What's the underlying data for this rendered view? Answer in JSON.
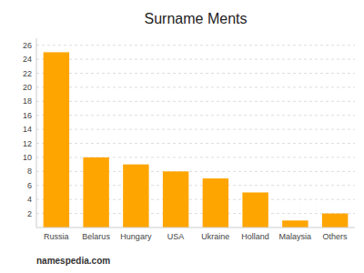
{
  "chart_data": {
    "type": "bar",
    "title": "Surname Ments",
    "categories": [
      "Russia",
      "Belarus",
      "Hungary",
      "USA",
      "Ukraine",
      "Holland",
      "Malaysia",
      "Others"
    ],
    "values": [
      25,
      10,
      9,
      8,
      7,
      5,
      1,
      2
    ],
    "color": "#FFA500",
    "ylim": [
      0,
      27
    ],
    "yticks": [
      2,
      4,
      6,
      8,
      10,
      12,
      14,
      16,
      18,
      20,
      22,
      24,
      26
    ],
    "grid": true,
    "annotations": [
      "namespedia.com"
    ]
  }
}
